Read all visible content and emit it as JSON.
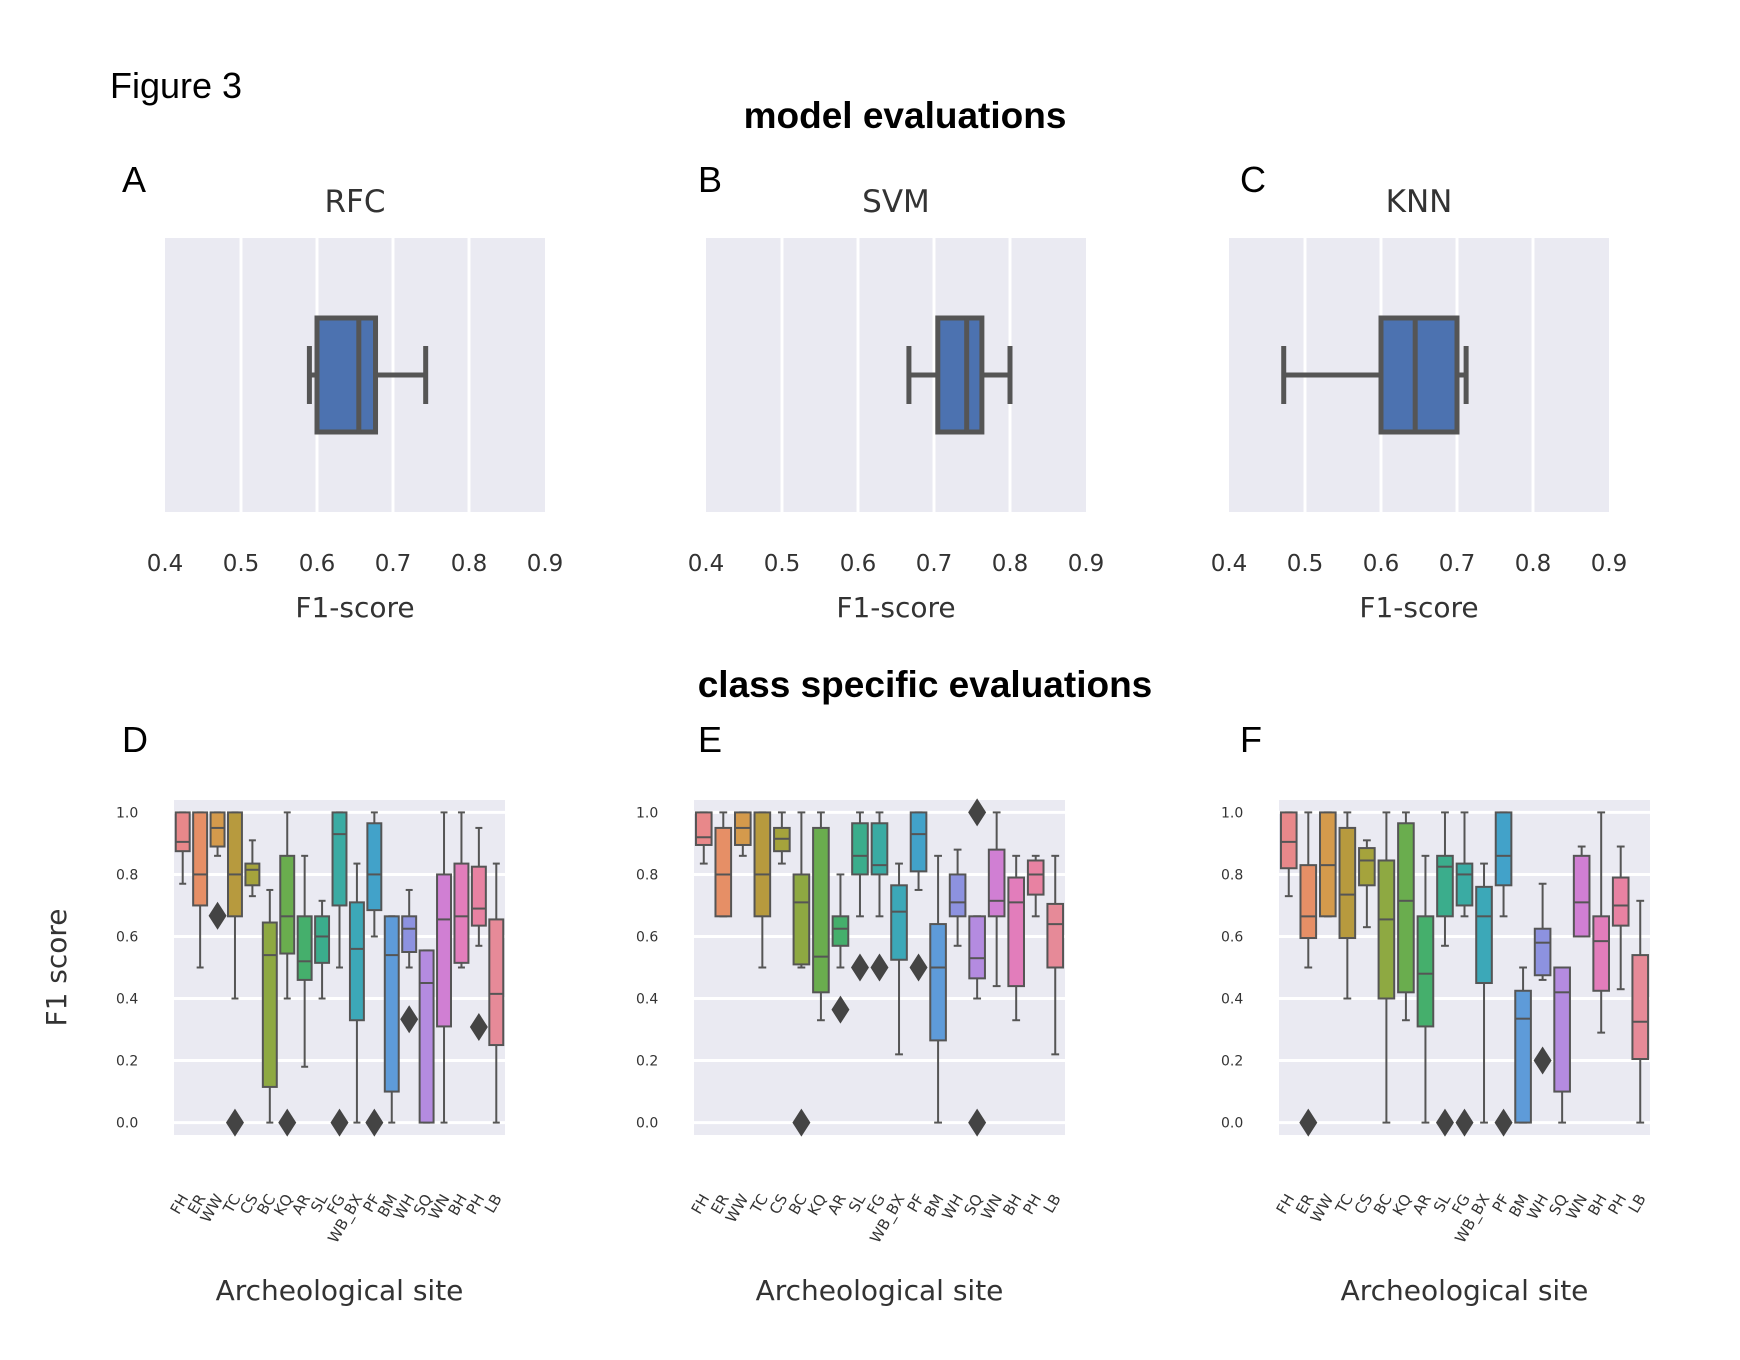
{
  "figure_label": "Figure 3",
  "section_titles": {
    "top": "model evaluations",
    "bottom": "class specific evaluations"
  },
  "colors": {
    "panel_bg": "#EAEAF2",
    "grid": "#FFFFFF",
    "box_line": "#555555",
    "box_fill": "#4C72B0",
    "outlier": "#444444"
  },
  "chart_data": [
    {
      "type": "boxplot",
      "orientation": "horizontal",
      "panel_letter": "A",
      "title": "RFC",
      "xlabel": "F1-score",
      "xlim": [
        0.4,
        0.9
      ],
      "xticks": [
        "0.4",
        "0.5",
        "0.6",
        "0.7",
        "0.8",
        "0.9"
      ],
      "grid": true,
      "box": {
        "whislo": 0.59,
        "q1": 0.6,
        "med": 0.655,
        "q3": 0.677,
        "whishi": 0.743
      }
    },
    {
      "type": "boxplot",
      "orientation": "horizontal",
      "panel_letter": "B",
      "title": "SVM",
      "xlabel": "F1-score",
      "xlim": [
        0.4,
        0.9
      ],
      "xticks": [
        "0.4",
        "0.5",
        "0.6",
        "0.7",
        "0.8",
        "0.9"
      ],
      "grid": true,
      "box": {
        "whislo": 0.667,
        "q1": 0.705,
        "med": 0.743,
        "q3": 0.763,
        "whishi": 0.8
      }
    },
    {
      "type": "boxplot",
      "orientation": "horizontal",
      "panel_letter": "C",
      "title": "KNN",
      "xlabel": "F1-score",
      "xlim": [
        0.4,
        0.9
      ],
      "xticks": [
        "0.4",
        "0.5",
        "0.6",
        "0.7",
        "0.8",
        "0.9"
      ],
      "grid": true,
      "box": {
        "whislo": 0.472,
        "q1": 0.6,
        "med": 0.645,
        "q3": 0.7,
        "whishi": 0.712
      }
    },
    {
      "type": "boxplot",
      "orientation": "vertical",
      "panel_letter": "D",
      "xlabel": "Archeological site",
      "ylabel": "F1 score",
      "ylim": [
        -0.04,
        1.04
      ],
      "yticks": [
        "0.0",
        "0.2",
        "0.4",
        "0.6",
        "0.8",
        "1.0"
      ],
      "grid": true,
      "categories": [
        "FH",
        "ER",
        "WW",
        "TC",
        "CS",
        "BC",
        "KQ",
        "AR",
        "SL",
        "FG",
        "WB_BX",
        "PF",
        "BM",
        "WH",
        "SQ",
        "WN",
        "BH",
        "PH",
        "LB"
      ],
      "colors": [
        "#E8888A",
        "#E68F66",
        "#D49A4C",
        "#B79A3E",
        "#A5A33C",
        "#8EA942",
        "#6AAD4E",
        "#45AF6C",
        "#3BAD8C",
        "#3AABA3",
        "#3CA8B8",
        "#42A2C9",
        "#5E9BD9",
        "#8D92E0",
        "#B48BE0",
        "#D07FD3",
        "#E27DBB",
        "#E882A2",
        "#E68A98"
      ],
      "boxes": [
        {
          "whislo": 0.77,
          "q1": 0.875,
          "med": 0.905,
          "q3": 1.0,
          "whishi": 1.0
        },
        {
          "whislo": 0.5,
          "q1": 0.7,
          "med": 0.8,
          "q3": 1.0,
          "whishi": 1.0
        },
        {
          "whislo": 0.86,
          "q1": 0.89,
          "med": 0.95,
          "q3": 1.0,
          "whishi": 1.0,
          "fliers": [
            0.667
          ]
        },
        {
          "whislo": 0.4,
          "q1": 0.665,
          "med": 0.8,
          "q3": 1.0,
          "whishi": 1.0,
          "fliers": [
            0.0
          ]
        },
        {
          "whislo": 0.73,
          "q1": 0.765,
          "med": 0.815,
          "q3": 0.835,
          "whishi": 0.91
        },
        {
          "whislo": 0.0,
          "q1": 0.115,
          "med": 0.54,
          "q3": 0.645,
          "whishi": 0.75
        },
        {
          "whislo": 0.4,
          "q1": 0.545,
          "med": 0.665,
          "q3": 0.86,
          "whishi": 1.0,
          "fliers": [
            0.0
          ]
        },
        {
          "whislo": 0.18,
          "q1": 0.46,
          "med": 0.52,
          "q3": 0.665,
          "whishi": 0.86
        },
        {
          "whislo": 0.4,
          "q1": 0.515,
          "med": 0.6,
          "q3": 0.665,
          "whishi": 0.715
        },
        {
          "whislo": 0.5,
          "q1": 0.7,
          "med": 0.93,
          "q3": 1.0,
          "whishi": 1.0,
          "fliers": [
            0.0
          ]
        },
        {
          "whislo": 0.0,
          "q1": 0.33,
          "med": 0.56,
          "q3": 0.71,
          "whishi": 0.835
        },
        {
          "whislo": 0.6,
          "q1": 0.685,
          "med": 0.8,
          "q3": 0.965,
          "whishi": 1.0,
          "fliers": [
            0.0
          ]
        },
        {
          "whislo": 0.0,
          "q1": 0.1,
          "med": 0.54,
          "q3": 0.665,
          "whishi": 0.665
        },
        {
          "whislo": 0.5,
          "q1": 0.55,
          "med": 0.625,
          "q3": 0.665,
          "whishi": 0.75,
          "fliers": [
            0.333
          ]
        },
        {
          "whislo": 0.0,
          "q1": 0.0,
          "med": 0.45,
          "q3": 0.555,
          "whishi": 0.555
        },
        {
          "whislo": 0.0,
          "q1": 0.31,
          "med": 0.655,
          "q3": 0.8,
          "whishi": 1.0
        },
        {
          "whislo": 0.5,
          "q1": 0.515,
          "med": 0.665,
          "q3": 0.835,
          "whishi": 1.0
        },
        {
          "whislo": 0.57,
          "q1": 0.635,
          "med": 0.69,
          "q3": 0.825,
          "whishi": 0.95,
          "fliers": [
            0.308
          ]
        },
        {
          "whislo": 0.0,
          "q1": 0.25,
          "med": 0.415,
          "q3": 0.655,
          "whishi": 0.835
        }
      ]
    },
    {
      "type": "boxplot",
      "orientation": "vertical",
      "panel_letter": "E",
      "xlabel": "Archeological site",
      "ylim": [
        -0.04,
        1.04
      ],
      "yticks": [
        "0.0",
        "0.2",
        "0.4",
        "0.6",
        "0.8",
        "1.0"
      ],
      "grid": true,
      "categories": [
        "FH",
        "ER",
        "WW",
        "TC",
        "CS",
        "BC",
        "KQ",
        "AR",
        "SL",
        "FG",
        "WB_BX",
        "PF",
        "BM",
        "WH",
        "SQ",
        "WN",
        "BH",
        "PH",
        "LB"
      ],
      "colors": [
        "#E8888A",
        "#E68F66",
        "#D49A4C",
        "#B79A3E",
        "#A5A33C",
        "#8EA942",
        "#6AAD4E",
        "#45AF6C",
        "#3BAD8C",
        "#3AABA3",
        "#3CA8B8",
        "#42A2C9",
        "#5E9BD9",
        "#8D92E0",
        "#B48BE0",
        "#D07FD3",
        "#E27DBB",
        "#E882A2",
        "#E68A98"
      ],
      "boxes": [
        {
          "whislo": 0.835,
          "q1": 0.895,
          "med": 0.92,
          "q3": 1.0,
          "whishi": 1.0
        },
        {
          "whislo": 0.665,
          "q1": 0.665,
          "med": 0.8,
          "q3": 0.95,
          "whishi": 1.0
        },
        {
          "whislo": 0.86,
          "q1": 0.895,
          "med": 0.95,
          "q3": 1.0,
          "whishi": 1.0
        },
        {
          "whislo": 0.5,
          "q1": 0.665,
          "med": 0.8,
          "q3": 1.0,
          "whishi": 1.0
        },
        {
          "whislo": 0.835,
          "q1": 0.875,
          "med": 0.915,
          "q3": 0.95,
          "whishi": 1.0
        },
        {
          "whislo": 0.5,
          "q1": 0.51,
          "med": 0.71,
          "q3": 0.8,
          "whishi": 1.0,
          "fliers": [
            0.0
          ]
        },
        {
          "whislo": 0.33,
          "q1": 0.42,
          "med": 0.535,
          "q3": 0.95,
          "whishi": 1.0
        },
        {
          "whislo": 0.5,
          "q1": 0.57,
          "med": 0.625,
          "q3": 0.665,
          "whishi": 0.8,
          "fliers": [
            0.364
          ]
        },
        {
          "whislo": 0.665,
          "q1": 0.8,
          "med": 0.86,
          "q3": 0.965,
          "whishi": 1.0,
          "fliers": [
            0.5
          ]
        },
        {
          "whislo": 0.665,
          "q1": 0.8,
          "med": 0.83,
          "q3": 0.965,
          "whishi": 1.0,
          "fliers": [
            0.5
          ]
        },
        {
          "whislo": 0.22,
          "q1": 0.525,
          "med": 0.68,
          "q3": 0.765,
          "whishi": 0.835
        },
        {
          "whislo": 0.75,
          "q1": 0.81,
          "med": 0.93,
          "q3": 1.0,
          "whishi": 1.0,
          "fliers": [
            0.5
          ]
        },
        {
          "whislo": 0.0,
          "q1": 0.265,
          "med": 0.5,
          "q3": 0.64,
          "whishi": 0.86
        },
        {
          "whislo": 0.57,
          "q1": 0.665,
          "med": 0.71,
          "q3": 0.8,
          "whishi": 0.88
        },
        {
          "whislo": 0.4,
          "q1": 0.465,
          "med": 0.53,
          "q3": 0.665,
          "whishi": 0.665,
          "fliers": [
            1.0,
            0.0
          ]
        },
        {
          "whislo": 0.44,
          "q1": 0.665,
          "med": 0.715,
          "q3": 0.88,
          "whishi": 1.0
        },
        {
          "whislo": 0.33,
          "q1": 0.44,
          "med": 0.71,
          "q3": 0.79,
          "whishi": 0.86
        },
        {
          "whislo": 0.665,
          "q1": 0.735,
          "med": 0.8,
          "q3": 0.845,
          "whishi": 0.86
        },
        {
          "whislo": 0.22,
          "q1": 0.5,
          "med": 0.64,
          "q3": 0.705,
          "whishi": 0.86
        }
      ]
    },
    {
      "type": "boxplot",
      "orientation": "vertical",
      "panel_letter": "F",
      "xlabel": "Archeological site",
      "ylim": [
        -0.04,
        1.04
      ],
      "yticks": [
        "0.0",
        "0.2",
        "0.4",
        "0.6",
        "0.8",
        "1.0"
      ],
      "grid": true,
      "categories": [
        "FH",
        "ER",
        "WW",
        "TC",
        "CS",
        "BC",
        "KQ",
        "AR",
        "SL",
        "FG",
        "WB_BX",
        "PF",
        "BM",
        "WH",
        "SQ",
        "WN",
        "BH",
        "PH",
        "LB"
      ],
      "colors": [
        "#E8888A",
        "#E68F66",
        "#D49A4C",
        "#B79A3E",
        "#A5A33C",
        "#8EA942",
        "#6AAD4E",
        "#45AF6C",
        "#3BAD8C",
        "#3AABA3",
        "#3CA8B8",
        "#42A2C9",
        "#5E9BD9",
        "#8D92E0",
        "#B48BE0",
        "#D07FD3",
        "#E27DBB",
        "#E882A2",
        "#E68A98"
      ],
      "boxes": [
        {
          "whislo": 0.73,
          "q1": 0.82,
          "med": 0.905,
          "q3": 1.0,
          "whishi": 1.0
        },
        {
          "whislo": 0.5,
          "q1": 0.595,
          "med": 0.665,
          "q3": 0.83,
          "whishi": 1.0,
          "fliers": [
            0.0
          ]
        },
        {
          "whislo": 0.665,
          "q1": 0.665,
          "med": 0.83,
          "q3": 1.0,
          "whishi": 1.0
        },
        {
          "whislo": 0.4,
          "q1": 0.595,
          "med": 0.735,
          "q3": 0.95,
          "whishi": 1.0
        },
        {
          "whislo": 0.63,
          "q1": 0.765,
          "med": 0.845,
          "q3": 0.885,
          "whishi": 0.91
        },
        {
          "whislo": 0.0,
          "q1": 0.4,
          "med": 0.655,
          "q3": 0.845,
          "whishi": 1.0
        },
        {
          "whislo": 0.33,
          "q1": 0.42,
          "med": 0.715,
          "q3": 0.965,
          "whishi": 1.0
        },
        {
          "whislo": 0.0,
          "q1": 0.31,
          "med": 0.48,
          "q3": 0.665,
          "whishi": 0.86
        },
        {
          "whislo": 0.57,
          "q1": 0.665,
          "med": 0.825,
          "q3": 0.86,
          "whishi": 1.0,
          "fliers": [
            0.0
          ]
        },
        {
          "whislo": 0.665,
          "q1": 0.7,
          "med": 0.8,
          "q3": 0.835,
          "whishi": 1.0,
          "fliers": [
            0.0
          ]
        },
        {
          "whislo": 0.0,
          "q1": 0.45,
          "med": 0.665,
          "q3": 0.76,
          "whishi": 0.835
        },
        {
          "whislo": 0.665,
          "q1": 0.765,
          "med": 0.86,
          "q3": 1.0,
          "whishi": 1.0,
          "fliers": [
            0.0
          ]
        },
        {
          "whislo": 0.0,
          "q1": 0.0,
          "med": 0.335,
          "q3": 0.425,
          "whishi": 0.5
        },
        {
          "whislo": 0.46,
          "q1": 0.475,
          "med": 0.58,
          "q3": 0.625,
          "whishi": 0.77,
          "fliers": [
            0.2
          ]
        },
        {
          "whislo": 0.0,
          "q1": 0.1,
          "med": 0.42,
          "q3": 0.5,
          "whishi": 0.5
        },
        {
          "whislo": 0.6,
          "q1": 0.6,
          "med": 0.71,
          "q3": 0.86,
          "whishi": 0.89
        },
        {
          "whislo": 0.29,
          "q1": 0.425,
          "med": 0.585,
          "q3": 0.665,
          "whishi": 1.0
        },
        {
          "whislo": 0.43,
          "q1": 0.635,
          "med": 0.7,
          "q3": 0.79,
          "whishi": 0.89
        },
        {
          "whislo": 0.0,
          "q1": 0.205,
          "med": 0.325,
          "q3": 0.54,
          "whishi": 0.715
        }
      ]
    }
  ]
}
